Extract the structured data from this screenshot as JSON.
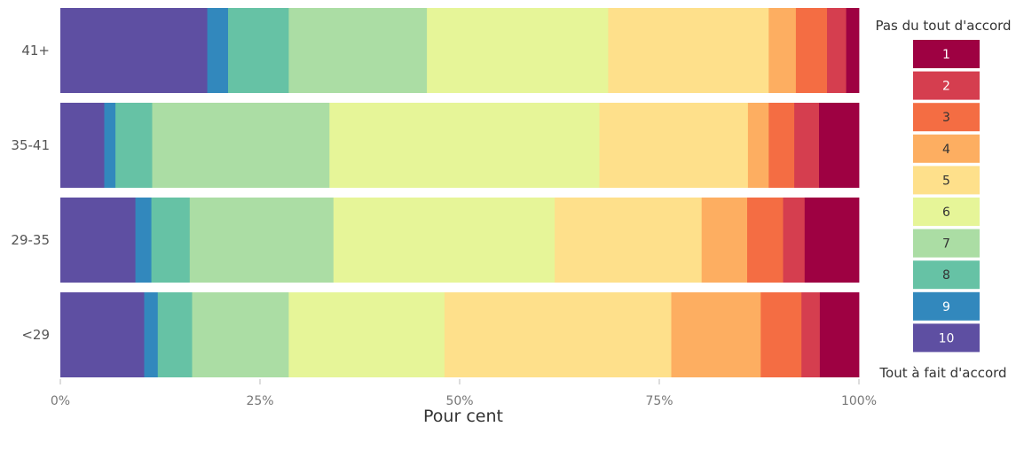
{
  "chart_data": {
    "type": "bar",
    "orientation": "horizontal",
    "stacked": true,
    "normalized": true,
    "categories": [
      "41+",
      "35-41",
      "29-35",
      "<29"
    ],
    "series": [
      {
        "name": "10",
        "color": "#5e4fa2",
        "values": [
          18.4,
          5.5,
          9.4,
          10.5
        ]
      },
      {
        "name": "9",
        "color": "#3288bd",
        "values": [
          2.6,
          1.4,
          2.0,
          1.7
        ]
      },
      {
        "name": "8",
        "color": "#66c2a5",
        "values": [
          7.6,
          4.6,
          4.8,
          4.3
        ]
      },
      {
        "name": "7",
        "color": "#abdda4",
        "values": [
          17.3,
          22.2,
          18.0,
          12.1
        ]
      },
      {
        "name": "6",
        "color": "#e6f598",
        "values": [
          22.7,
          33.8,
          27.7,
          19.5
        ]
      },
      {
        "name": "5",
        "color": "#fee08b",
        "values": [
          20.1,
          18.6,
          18.4,
          28.4
        ]
      },
      {
        "name": "4",
        "color": "#fdae61",
        "values": [
          3.4,
          2.6,
          5.7,
          11.2
        ]
      },
      {
        "name": "3",
        "color": "#f46d43",
        "values": [
          3.9,
          3.2,
          4.5,
          5.1
        ]
      },
      {
        "name": "2",
        "color": "#d53e4f",
        "values": [
          2.4,
          3.1,
          2.7,
          2.3
        ]
      },
      {
        "name": "1",
        "color": "#9e0142",
        "values": [
          1.6,
          5.0,
          6.8,
          4.9
        ]
      }
    ],
    "xticks": [
      "0%",
      "25%",
      "50%",
      "75%",
      "100%"
    ],
    "xlim": [
      0,
      100
    ],
    "xlabel": "Pour cent",
    "ylabel": "",
    "grid": false,
    "legend": {
      "placement": "right",
      "title_top": "Pas du tout d'accord",
      "title_bottom": "Tout à fait d'accord",
      "items": [
        {
          "label": "1",
          "color": "#9e0142",
          "text_color": "#ffffff"
        },
        {
          "label": "2",
          "color": "#d53e4f",
          "text_color": "#ffffff"
        },
        {
          "label": "3",
          "color": "#f46d43",
          "text_color": "#333333"
        },
        {
          "label": "4",
          "color": "#fdae61",
          "text_color": "#333333"
        },
        {
          "label": "5",
          "color": "#fee08b",
          "text_color": "#333333"
        },
        {
          "label": "6",
          "color": "#e6f598",
          "text_color": "#333333"
        },
        {
          "label": "7",
          "color": "#abdda4",
          "text_color": "#333333"
        },
        {
          "label": "8",
          "color": "#66c2a5",
          "text_color": "#333333"
        },
        {
          "label": "9",
          "color": "#3288bd",
          "text_color": "#ffffff"
        },
        {
          "label": "10",
          "color": "#5e4fa2",
          "text_color": "#ffffff"
        }
      ]
    }
  }
}
